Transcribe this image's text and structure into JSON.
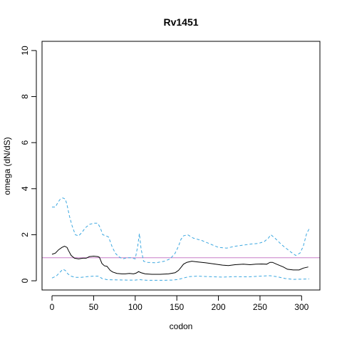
{
  "chart_data": {
    "type": "line",
    "title": "Rv1451",
    "xlabel": "codon",
    "ylabel": "omega (dN/dS)",
    "xlim": [
      -12,
      322
    ],
    "ylim": [
      -0.4,
      10.4
    ],
    "x_ticks": [
      0,
      50,
      100,
      150,
      200,
      250,
      300
    ],
    "y_ticks": [
      0,
      2,
      4,
      6,
      8,
      10
    ],
    "grid": false,
    "reference_line": {
      "y": 1,
      "color": "#c77fc7"
    },
    "series": [
      {
        "style": "solid",
        "color": "#000000",
        "points": [
          [
            0,
            1.15
          ],
          [
            4,
            1.2
          ],
          [
            8,
            1.35
          ],
          [
            12,
            1.45
          ],
          [
            15,
            1.5
          ],
          [
            18,
            1.45
          ],
          [
            20,
            1.3
          ],
          [
            23,
            1.1
          ],
          [
            27,
            0.98
          ],
          [
            32,
            0.95
          ],
          [
            37,
            0.98
          ],
          [
            41,
            0.98
          ],
          [
            45,
            1.05
          ],
          [
            50,
            1.07
          ],
          [
            55,
            1.05
          ],
          [
            57,
            1.02
          ],
          [
            60,
            0.75
          ],
          [
            63,
            0.65
          ],
          [
            66,
            0.63
          ],
          [
            70,
            0.45
          ],
          [
            73,
            0.38
          ],
          [
            78,
            0.32
          ],
          [
            84,
            0.3
          ],
          [
            88,
            0.3
          ],
          [
            93,
            0.32
          ],
          [
            98,
            0.3
          ],
          [
            101,
            0.33
          ],
          [
            104,
            0.4
          ],
          [
            107,
            0.35
          ],
          [
            112,
            0.3
          ],
          [
            120,
            0.28
          ],
          [
            130,
            0.28
          ],
          [
            140,
            0.3
          ],
          [
            148,
            0.35
          ],
          [
            152,
            0.45
          ],
          [
            155,
            0.58
          ],
          [
            158,
            0.72
          ],
          [
            162,
            0.8
          ],
          [
            168,
            0.85
          ],
          [
            175,
            0.82
          ],
          [
            185,
            0.78
          ],
          [
            195,
            0.73
          ],
          [
            205,
            0.68
          ],
          [
            212,
            0.66
          ],
          [
            220,
            0.7
          ],
          [
            230,
            0.72
          ],
          [
            238,
            0.7
          ],
          [
            245,
            0.72
          ],
          [
            252,
            0.73
          ],
          [
            258,
            0.72
          ],
          [
            262,
            0.8
          ],
          [
            265,
            0.8
          ],
          [
            270,
            0.72
          ],
          [
            278,
            0.6
          ],
          [
            283,
            0.5
          ],
          [
            290,
            0.47
          ],
          [
            297,
            0.47
          ],
          [
            302,
            0.55
          ],
          [
            308,
            0.6
          ]
        ]
      },
      {
        "style": "dashed",
        "color": "#3ba7e0",
        "points": [
          [
            0,
            3.2
          ],
          [
            4,
            3.2
          ],
          [
            7,
            3.4
          ],
          [
            10,
            3.55
          ],
          [
            13,
            3.6
          ],
          [
            16,
            3.55
          ],
          [
            18,
            3.3
          ],
          [
            21,
            2.8
          ],
          [
            24,
            2.4
          ],
          [
            28,
            2.0
          ],
          [
            32,
            1.95
          ],
          [
            36,
            2.1
          ],
          [
            40,
            2.3
          ],
          [
            45,
            2.45
          ],
          [
            50,
            2.5
          ],
          [
            55,
            2.5
          ],
          [
            58,
            2.3
          ],
          [
            61,
            2.0
          ],
          [
            65,
            1.95
          ],
          [
            68,
            1.9
          ],
          [
            72,
            1.5
          ],
          [
            76,
            1.2
          ],
          [
            80,
            1.05
          ],
          [
            85,
            0.95
          ],
          [
            90,
            1.0
          ],
          [
            95,
            1.0
          ],
          [
            100,
            0.95
          ],
          [
            103,
            1.5
          ],
          [
            105,
            2.05
          ],
          [
            107,
            1.4
          ],
          [
            110,
            0.85
          ],
          [
            115,
            0.8
          ],
          [
            125,
            0.78
          ],
          [
            135,
            0.85
          ],
          [
            142,
            0.95
          ],
          [
            148,
            1.2
          ],
          [
            152,
            1.5
          ],
          [
            155,
            1.8
          ],
          [
            158,
            1.95
          ],
          [
            163,
            2.0
          ],
          [
            170,
            1.85
          ],
          [
            180,
            1.75
          ],
          [
            190,
            1.6
          ],
          [
            200,
            1.45
          ],
          [
            210,
            1.42
          ],
          [
            220,
            1.5
          ],
          [
            230,
            1.55
          ],
          [
            240,
            1.6
          ],
          [
            248,
            1.62
          ],
          [
            255,
            1.7
          ],
          [
            260,
            1.85
          ],
          [
            263,
            2.0
          ],
          [
            268,
            1.85
          ],
          [
            275,
            1.6
          ],
          [
            280,
            1.45
          ],
          [
            287,
            1.25
          ],
          [
            293,
            1.1
          ],
          [
            298,
            1.2
          ],
          [
            302,
            1.5
          ],
          [
            306,
            2.05
          ],
          [
            309,
            2.25
          ]
        ]
      },
      {
        "style": "dashed",
        "color": "#3ba7e0",
        "points": [
          [
            0,
            0.12
          ],
          [
            5,
            0.2
          ],
          [
            9,
            0.35
          ],
          [
            13,
            0.5
          ],
          [
            16,
            0.45
          ],
          [
            19,
            0.3
          ],
          [
            23,
            0.2
          ],
          [
            28,
            0.15
          ],
          [
            35,
            0.15
          ],
          [
            42,
            0.18
          ],
          [
            50,
            0.2
          ],
          [
            56,
            0.2
          ],
          [
            60,
            0.1
          ],
          [
            66,
            0.05
          ],
          [
            75,
            0.04
          ],
          [
            90,
            0.03
          ],
          [
            100,
            0.03
          ],
          [
            105,
            0.05
          ],
          [
            115,
            0.02
          ],
          [
            130,
            0.02
          ],
          [
            145,
            0.03
          ],
          [
            152,
            0.06
          ],
          [
            158,
            0.12
          ],
          [
            165,
            0.18
          ],
          [
            175,
            0.2
          ],
          [
            190,
            0.18
          ],
          [
            205,
            0.16
          ],
          [
            220,
            0.18
          ],
          [
            235,
            0.17
          ],
          [
            250,
            0.2
          ],
          [
            262,
            0.22
          ],
          [
            270,
            0.18
          ],
          [
            280,
            0.1
          ],
          [
            290,
            0.06
          ],
          [
            300,
            0.07
          ],
          [
            309,
            0.08
          ]
        ]
      }
    ]
  }
}
